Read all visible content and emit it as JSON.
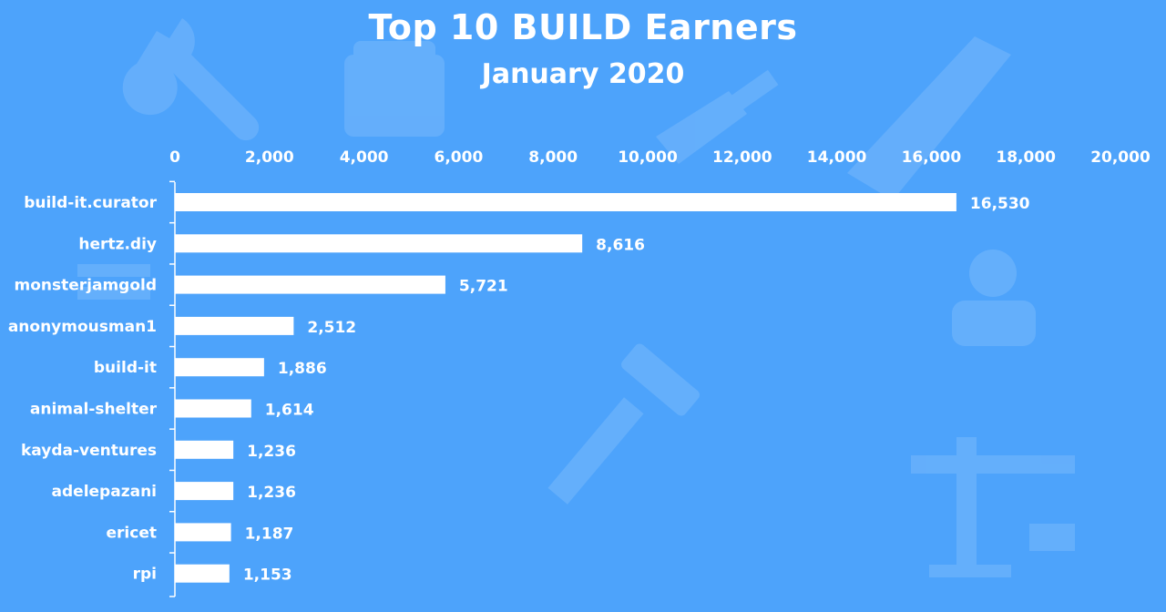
{
  "chart_data": {
    "type": "bar",
    "orientation": "horizontal",
    "title": "Top 10 BUILD Earners",
    "subtitle": "January 2020",
    "categories": [
      "build-it.curator",
      "hertz.diy",
      "monsterjamgold",
      "anonymousman1",
      "build-it",
      "animal-shelter",
      "kayda-ventures",
      "adelepazani",
      "ericet",
      "rpi"
    ],
    "values": [
      16530,
      8616,
      5721,
      2512,
      1886,
      1614,
      1236,
      1236,
      1187,
      1153
    ],
    "value_labels": [
      "16,530",
      "8,616",
      "5,721",
      "2,512",
      "1,886",
      "1,614",
      "1,236",
      "1,236",
      "1,187",
      "1,153"
    ],
    "xlim": [
      0,
      20000
    ],
    "x_ticks": [
      0,
      2000,
      4000,
      6000,
      8000,
      10000,
      12000,
      14000,
      16000,
      18000,
      20000
    ],
    "x_tick_labels": [
      "0",
      "2,000",
      "4,000",
      "6,000",
      "8,000",
      "10,000",
      "12,000",
      "14,000",
      "16,000",
      "18,000",
      "20,000"
    ],
    "x_axis_position": "top",
    "grid": false,
    "bar_color": "#ffffff",
    "background_color": "#4da3fb"
  },
  "background_icons": [
    "wrench-icon",
    "paint-bucket-icon",
    "paintbrush-icon",
    "saw-icon",
    "hammer-icon",
    "screwdriver-icon",
    "worker-icon",
    "crane-icon"
  ]
}
